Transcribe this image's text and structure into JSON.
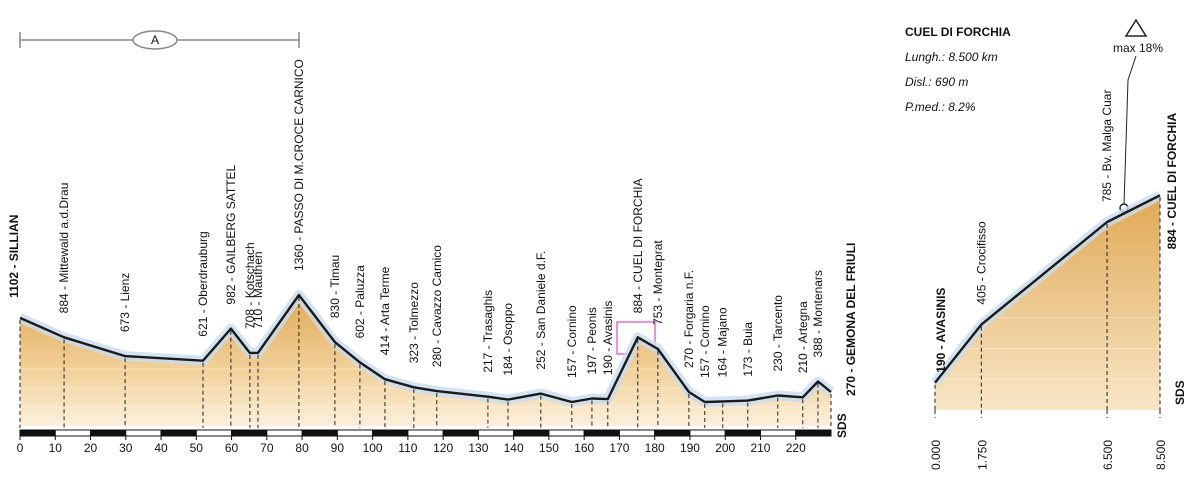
{
  "chart_data": [
    {
      "type": "profile",
      "annotation": "A",
      "logo": "SDS",
      "x": [
        0,
        12.5,
        29.8,
        51.9,
        59.8,
        65.2,
        67.5,
        79.1,
        89.3,
        96.4,
        103.5,
        111.7,
        118.2,
        132.7,
        138.4,
        147.7,
        156.5,
        162.2,
        166.7,
        175.2,
        180.9,
        189.7,
        194.2,
        199.3,
        206.4,
        214.9,
        222.0,
        226.3,
        230
      ],
      "values": [
        1102,
        884,
        673,
        621,
        982,
        708,
        710,
        1360,
        830,
        602,
        414,
        323,
        280,
        217,
        184,
        252,
        157,
        197,
        190,
        884,
        753,
        270,
        157,
        164,
        173,
        230,
        210,
        388,
        270
      ],
      "value_labels": [
        "1102 - SILLIAN",
        "884 - Mittewald a.d.Drau",
        "673 - Lienz",
        "621 - Oberdrauburg",
        "982 - GAILBERG SATTEL",
        "708 - Kotschach",
        "710 - Mauthen",
        "1360 - PASSO DI M.CROCE CARNICO",
        "830 - Timau",
        "602 - Paluzza",
        "414 - Arta Terme",
        "323 - Tolmezzo",
        "280 - Cavazzo Carnico",
        "217 - Trasaghis",
        "184 - Osoppo",
        "252 - San Daniele d.F.",
        "157 - Cornino",
        "197 - Peonis",
        "190 - Avasinis",
        "884 - CUEL DI FORCHIA",
        "753 - Monteprat",
        "270 - Forgaria n.F.",
        "157 - Cornino",
        "164 - Majano",
        "173 - Buia",
        "230 - Tarcento",
        "210 - Artegna",
        "388 - Montenars",
        "270 - GEMONA DEL FRIULI"
      ],
      "xlim": [
        0,
        230
      ],
      "xticks": [
        0,
        10,
        20,
        30,
        40,
        50,
        60,
        70,
        80,
        90,
        100,
        110,
        120,
        130,
        140,
        150,
        160,
        170,
        180,
        190,
        200,
        210,
        220
      ],
      "ylim": [
        0,
        1600
      ],
      "color": "#e8b66a"
    },
    {
      "type": "profile",
      "title": "CUEL DI FORCHIA",
      "info": [
        "Lungh.: 8.500 km",
        "Disl.: 690 m",
        "P.med.: 8.2%"
      ],
      "annotation": "max 18%",
      "logo": "SDS",
      "x": [
        0,
        1.75,
        6.5,
        8.5
      ],
      "values": [
        190,
        405,
        785,
        884
      ],
      "value_labels": [
        "190 - AVASINIS",
        "405 - Crocifisso",
        "785 - Bv. Malga Cuar",
        "884 - CUEL DI FORCHIA"
      ],
      "xlim": [
        0,
        8.5
      ],
      "xticks": [
        {
          "value": 0,
          "label": "0.000"
        },
        {
          "value": 1.75,
          "label": "1.750"
        },
        {
          "value": 6.5,
          "label": "6.500"
        },
        {
          "value": 8.5,
          "label": "8.500"
        }
      ],
      "ylim": [
        0,
        1000
      ],
      "color": "#e8b66a"
    }
  ]
}
